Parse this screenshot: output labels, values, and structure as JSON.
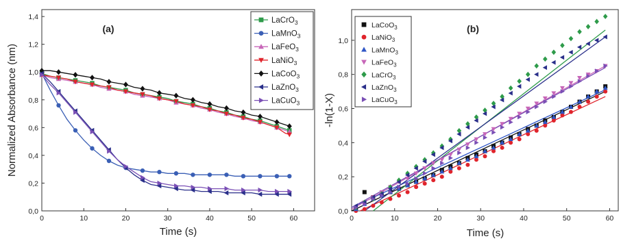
{
  "chart_data": [
    {
      "type": "line",
      "panel_label": "(a)",
      "xlabel": "Time (s)",
      "ylabel": "Normalized Absorbance (nm)",
      "xlim": [
        0,
        65
      ],
      "ylim": [
        0,
        1.45
      ],
      "x_ticks": [
        "0",
        "10",
        "20",
        "30",
        "40",
        "50",
        "60"
      ],
      "y_ticks": [
        "0,0",
        "0,2",
        "0,4",
        "0,6",
        "0,8",
        "1,0",
        "1,2",
        "1,4"
      ],
      "legend_position": "top-right",
      "grid": false,
      "x": [
        0,
        2,
        4,
        6,
        8,
        10,
        12,
        14,
        16,
        18,
        20,
        22,
        24,
        26,
        28,
        30,
        32,
        34,
        36,
        38,
        40,
        42,
        44,
        46,
        48,
        50,
        52,
        54,
        56,
        58,
        59
      ],
      "series": [
        {
          "name": "LaCrO3",
          "label_base": "LaCrO",
          "label_sub": "3",
          "color": "#2e9b4a",
          "marker": "square",
          "values": [
            0.99,
            0.97,
            0.96,
            0.95,
            0.94,
            0.93,
            0.92,
            0.9,
            0.89,
            0.88,
            0.87,
            0.85,
            0.84,
            0.83,
            0.82,
            0.81,
            0.79,
            0.78,
            0.77,
            0.75,
            0.74,
            0.72,
            0.71,
            0.69,
            0.68,
            0.66,
            0.65,
            0.63,
            0.61,
            0.59,
            0.58
          ]
        },
        {
          "name": "LaMnO3",
          "label_base": "LaMnO",
          "label_sub": "3",
          "color": "#3a5fb5",
          "marker": "circle",
          "values": [
            0.99,
            0.87,
            0.76,
            0.66,
            0.58,
            0.51,
            0.45,
            0.4,
            0.36,
            0.33,
            0.31,
            0.3,
            0.29,
            0.28,
            0.28,
            0.27,
            0.27,
            0.27,
            0.26,
            0.26,
            0.26,
            0.26,
            0.26,
            0.25,
            0.25,
            0.25,
            0.25,
            0.25,
            0.25,
            0.25,
            0.25
          ]
        },
        {
          "name": "LaFeO3",
          "label_base": "LaFeO",
          "label_sub": "3",
          "color": "#c766b8",
          "marker": "triangle-up",
          "values": [
            0.98,
            0.96,
            0.95,
            0.94,
            0.93,
            0.92,
            0.91,
            0.89,
            0.88,
            0.87,
            0.86,
            0.84,
            0.83,
            0.82,
            0.81,
            0.8,
            0.78,
            0.77,
            0.76,
            0.74,
            0.73,
            0.71,
            0.7,
            0.68,
            0.67,
            0.65,
            0.64,
            0.62,
            0.6,
            0.58,
            0.57
          ]
        },
        {
          "name": "LaNiO3",
          "label_base": "LaNiO",
          "label_sub": "3",
          "color": "#e0242c",
          "marker": "triangle-down",
          "values": [
            0.98,
            0.97,
            0.96,
            0.95,
            0.93,
            0.92,
            0.91,
            0.9,
            0.89,
            0.87,
            0.86,
            0.85,
            0.84,
            0.83,
            0.81,
            0.8,
            0.79,
            0.77,
            0.76,
            0.75,
            0.73,
            0.72,
            0.7,
            0.69,
            0.67,
            0.66,
            0.64,
            0.62,
            0.6,
            0.56,
            0.55
          ]
        },
        {
          "name": "LaCoO3",
          "label_base": "LaCoO",
          "label_sub": "3",
          "color": "#111111",
          "marker": "diamond",
          "values": [
            1.01,
            1.01,
            1.0,
            0.99,
            0.98,
            0.97,
            0.96,
            0.95,
            0.93,
            0.92,
            0.91,
            0.89,
            0.88,
            0.87,
            0.85,
            0.84,
            0.83,
            0.81,
            0.8,
            0.78,
            0.77,
            0.75,
            0.74,
            0.72,
            0.71,
            0.69,
            0.68,
            0.66,
            0.64,
            0.62,
            0.61
          ]
        },
        {
          "name": "LaZnO3",
          "label_base": "LaZnO",
          "label_sub": "3",
          "color": "#2a2f8a",
          "marker": "triangle-left",
          "values": [
            0.99,
            0.93,
            0.86,
            0.79,
            0.72,
            0.65,
            0.58,
            0.51,
            0.44,
            0.37,
            0.31,
            0.26,
            0.22,
            0.19,
            0.18,
            0.17,
            0.16,
            0.15,
            0.15,
            0.14,
            0.14,
            0.14,
            0.13,
            0.13,
            0.13,
            0.13,
            0.12,
            0.12,
            0.12,
            0.12,
            0.12
          ]
        },
        {
          "name": "LaCuO3",
          "label_base": "LaCuO",
          "label_sub": "3",
          "color": "#7a4fb5",
          "marker": "triangle-right",
          "values": [
            0.98,
            0.91,
            0.85,
            0.78,
            0.71,
            0.64,
            0.57,
            0.5,
            0.43,
            0.37,
            0.32,
            0.28,
            0.24,
            0.21,
            0.2,
            0.19,
            0.18,
            0.18,
            0.17,
            0.17,
            0.16,
            0.16,
            0.16,
            0.15,
            0.15,
            0.15,
            0.15,
            0.14,
            0.14,
            0.14,
            0.14
          ]
        }
      ]
    },
    {
      "type": "scatter",
      "panel_label": "(b)",
      "xlabel": "Time (s)",
      "ylabel": "-ln(1-X)",
      "xlim": [
        0,
        62
      ],
      "ylim": [
        0,
        1.18
      ],
      "x_ticks": [
        "0",
        "10",
        "20",
        "30",
        "40",
        "50",
        "60"
      ],
      "y_ticks": [
        "0,0",
        "0,2",
        "0,4",
        "0,6",
        "0,8",
        "1,0"
      ],
      "legend_position": "top-left",
      "grid": false,
      "x": [
        1,
        3,
        5,
        7,
        9,
        11,
        13,
        15,
        17,
        19,
        21,
        23,
        25,
        27,
        29,
        31,
        33,
        35,
        37,
        39,
        41,
        43,
        45,
        47,
        49,
        51,
        53,
        55,
        57,
        59
      ],
      "series": [
        {
          "name": "LaCoO3",
          "label_base": "LaCoO",
          "label_sub": "3",
          "color": "#111111",
          "marker": "square",
          "values": [
            0.01,
            0.11,
            0.08,
            0.09,
            0.11,
            0.13,
            0.15,
            0.17,
            0.19,
            0.21,
            0.24,
            0.26,
            0.28,
            0.31,
            0.33,
            0.35,
            0.38,
            0.4,
            0.43,
            0.45,
            0.48,
            0.5,
            0.53,
            0.55,
            0.58,
            0.61,
            0.64,
            0.67,
            0.7,
            0.73
          ],
          "fit": [
            [
              0,
              0.0
            ],
            [
              59,
              0.7
            ]
          ]
        },
        {
          "name": "LaNiO3",
          "label_base": "LaNiO",
          "label_sub": "3",
          "color": "#e0242c",
          "marker": "circle",
          "values": [
            0.0,
            0.01,
            0.03,
            0.05,
            0.07,
            0.09,
            0.11,
            0.14,
            0.16,
            0.18,
            0.2,
            0.23,
            0.25,
            0.27,
            0.3,
            0.32,
            0.35,
            0.37,
            0.4,
            0.42,
            0.45,
            0.47,
            0.5,
            0.53,
            0.56,
            0.58,
            0.61,
            0.64,
            0.67,
            0.7
          ],
          "fit": [
            [
              2,
              0.0
            ],
            [
              59,
              0.67
            ]
          ]
        },
        {
          "name": "LaMnO3",
          "label_base": "LaMnO",
          "label_sub": "3",
          "color": "#2f56c6",
          "marker": "triangle-up",
          "values": [
            0.01,
            0.04,
            0.07,
            0.09,
            0.11,
            0.13,
            0.15,
            0.17,
            0.19,
            0.21,
            0.23,
            0.25,
            0.28,
            0.3,
            0.32,
            0.35,
            0.37,
            0.4,
            0.42,
            0.45,
            0.47,
            0.5,
            0.52,
            0.55,
            0.58,
            0.61,
            0.64,
            0.67,
            0.7,
            0.72
          ],
          "fit": [
            [
              0,
              0.02
            ],
            [
              59,
              0.71
            ]
          ]
        },
        {
          "name": "LaFeO3",
          "label_base": "LaFeO",
          "label_sub": "3",
          "color": "#c766b8",
          "marker": "triangle-down",
          "values": [
            0.02,
            0.05,
            0.08,
            0.11,
            0.14,
            0.17,
            0.19,
            0.22,
            0.25,
            0.28,
            0.3,
            0.33,
            0.36,
            0.39,
            0.42,
            0.45,
            0.48,
            0.51,
            0.54,
            0.57,
            0.6,
            0.63,
            0.66,
            0.69,
            0.72,
            0.75,
            0.78,
            0.8,
            0.82,
            0.85
          ],
          "fit": [
            [
              0,
              0.01
            ],
            [
              59,
              0.85
            ]
          ]
        },
        {
          "name": "LaCrO3",
          "label_base": "LaCrO",
          "label_sub": "3",
          "color": "#2e9b4a",
          "marker": "diamond",
          "values": [
            0.02,
            0.05,
            0.07,
            0.1,
            0.14,
            0.18,
            0.22,
            0.26,
            0.3,
            0.34,
            0.38,
            0.42,
            0.47,
            0.51,
            0.55,
            0.59,
            0.63,
            0.67,
            0.72,
            0.76,
            0.8,
            0.85,
            0.89,
            0.93,
            0.97,
            1.01,
            1.05,
            1.08,
            1.11,
            1.14
          ],
          "fit": [
            [
              5,
              0.0
            ],
            [
              59,
              1.06
            ]
          ]
        },
        {
          "name": "LaZnO3",
          "label_base": "LaZnO",
          "label_sub": "3",
          "color": "#2a2f8a",
          "marker": "triangle-left",
          "values": [
            0.03,
            0.05,
            0.08,
            0.1,
            0.13,
            0.17,
            0.21,
            0.25,
            0.29,
            0.33,
            0.37,
            0.41,
            0.45,
            0.49,
            0.53,
            0.57,
            0.61,
            0.65,
            0.69,
            0.73,
            0.77,
            0.8,
            0.84,
            0.87,
            0.9,
            0.93,
            0.96,
            0.98,
            1.0,
            1.02
          ],
          "fit": [
            [
              3,
              0.0
            ],
            [
              59,
              1.02
            ]
          ]
        },
        {
          "name": "LaCuO3",
          "label_base": "LaCuO",
          "label_sub": "3",
          "color": "#7a4fb5",
          "marker": "triangle-right",
          "values": [
            0.02,
            0.04,
            0.07,
            0.09,
            0.11,
            0.14,
            0.16,
            0.19,
            0.22,
            0.25,
            0.28,
            0.31,
            0.34,
            0.37,
            0.4,
            0.43,
            0.46,
            0.49,
            0.52,
            0.55,
            0.58,
            0.61,
            0.64,
            0.67,
            0.7,
            0.73,
            0.76,
            0.79,
            0.82,
            0.85
          ],
          "fit": [
            [
              0,
              0.02
            ],
            [
              59,
              0.84
            ]
          ]
        }
      ]
    }
  ]
}
